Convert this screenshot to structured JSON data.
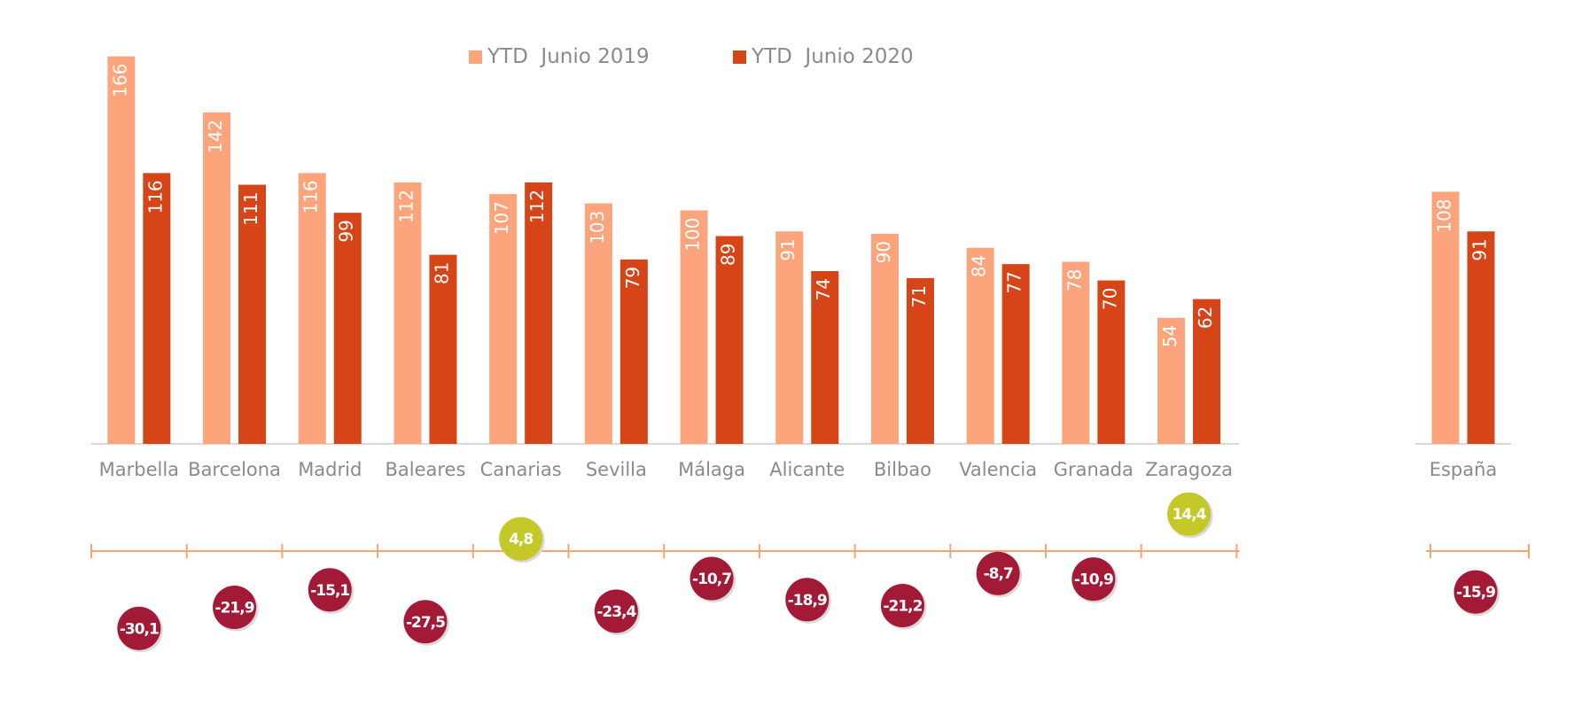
{
  "chart_data": {
    "type": "bar",
    "categories": [
      "Marbella",
      "Barcelona",
      "Madrid",
      "Baleares",
      "Canarias",
      "Sevilla",
      "Málaga",
      "Alicante",
      "Bilbao",
      "Valencia",
      "Granada",
      "Zaragoza"
    ],
    "series": [
      {
        "name": "YTD  Junio 2019",
        "color": "#fca57c",
        "values": [
          166,
          142,
          116,
          112,
          107,
          103,
          100,
          91,
          90,
          84,
          78,
          54
        ]
      },
      {
        "name": "YTD  Junio 2020",
        "color": "#d64517",
        "values": [
          116,
          111,
          99,
          81,
          112,
          79,
          89,
          74,
          71,
          77,
          70,
          62
        ]
      }
    ],
    "variation": {
      "values": [
        -30.1,
        -21.9,
        -15.1,
        -27.5,
        4.8,
        -23.4,
        -10.7,
        -18.9,
        -21.2,
        -8.7,
        -10.9,
        14.4
      ],
      "labels": [
        "-30,1",
        "-21,9",
        "-15,1",
        "-27,5",
        "4,8",
        "-23,4",
        "-10,7",
        "-18,9",
        "-21,2",
        "-8,7",
        "-10,9",
        "14,4"
      ],
      "positive_color": "#c5c829",
      "negative_color": "#a21a36"
    },
    "total": {
      "category": "España",
      "values": [
        108,
        91
      ],
      "variation": -15.9,
      "variation_label": "-15,9"
    },
    "ylim": [
      0,
      170
    ],
    "axis_color": "#f5a47a",
    "legend_position": "top",
    "grid": false
  }
}
